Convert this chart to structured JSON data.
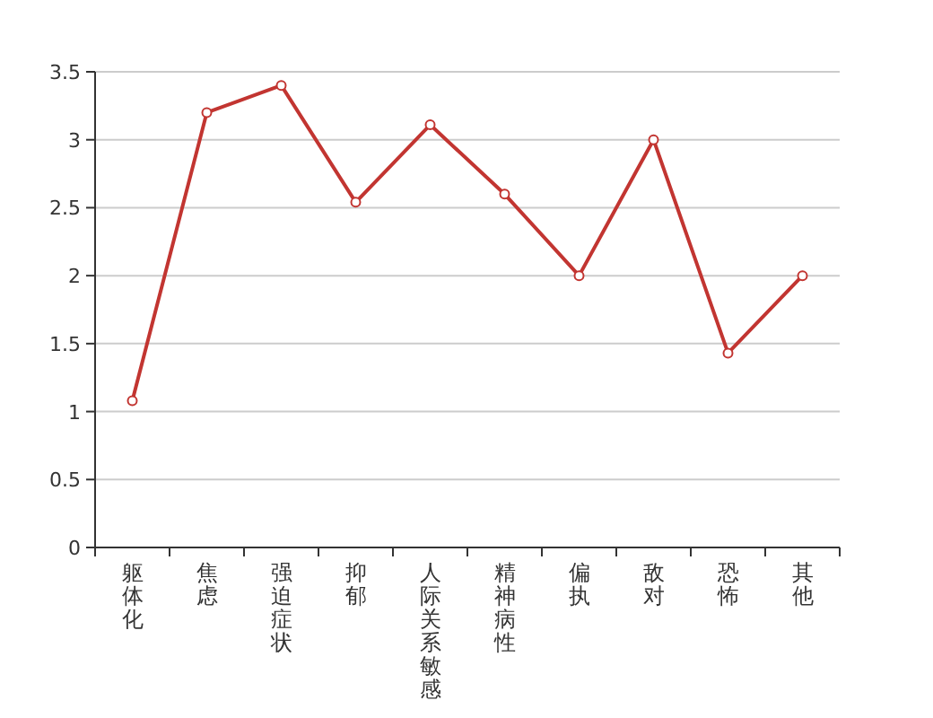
{
  "chart_data": {
    "type": "line",
    "categories": [
      "躯体化",
      "焦虑",
      "强迫症状",
      "抑郁",
      "人际关系敏感",
      "精神病性",
      "偏执",
      "敌对",
      "恐怖",
      "其他"
    ],
    "series": [
      {
        "color": "#c23531",
        "values": [
          1.08,
          3.2,
          3.4,
          2.54,
          3.11,
          2.6,
          2.0,
          3.0,
          1.43,
          2.0
        ]
      }
    ],
    "ylim": [
      0,
      3.5
    ],
    "yticks": [
      0,
      0.5,
      1,
      1.5,
      2,
      2.5,
      3,
      3.5
    ],
    "grid": "y",
    "marker": "circle",
    "line_style": "solid"
  }
}
